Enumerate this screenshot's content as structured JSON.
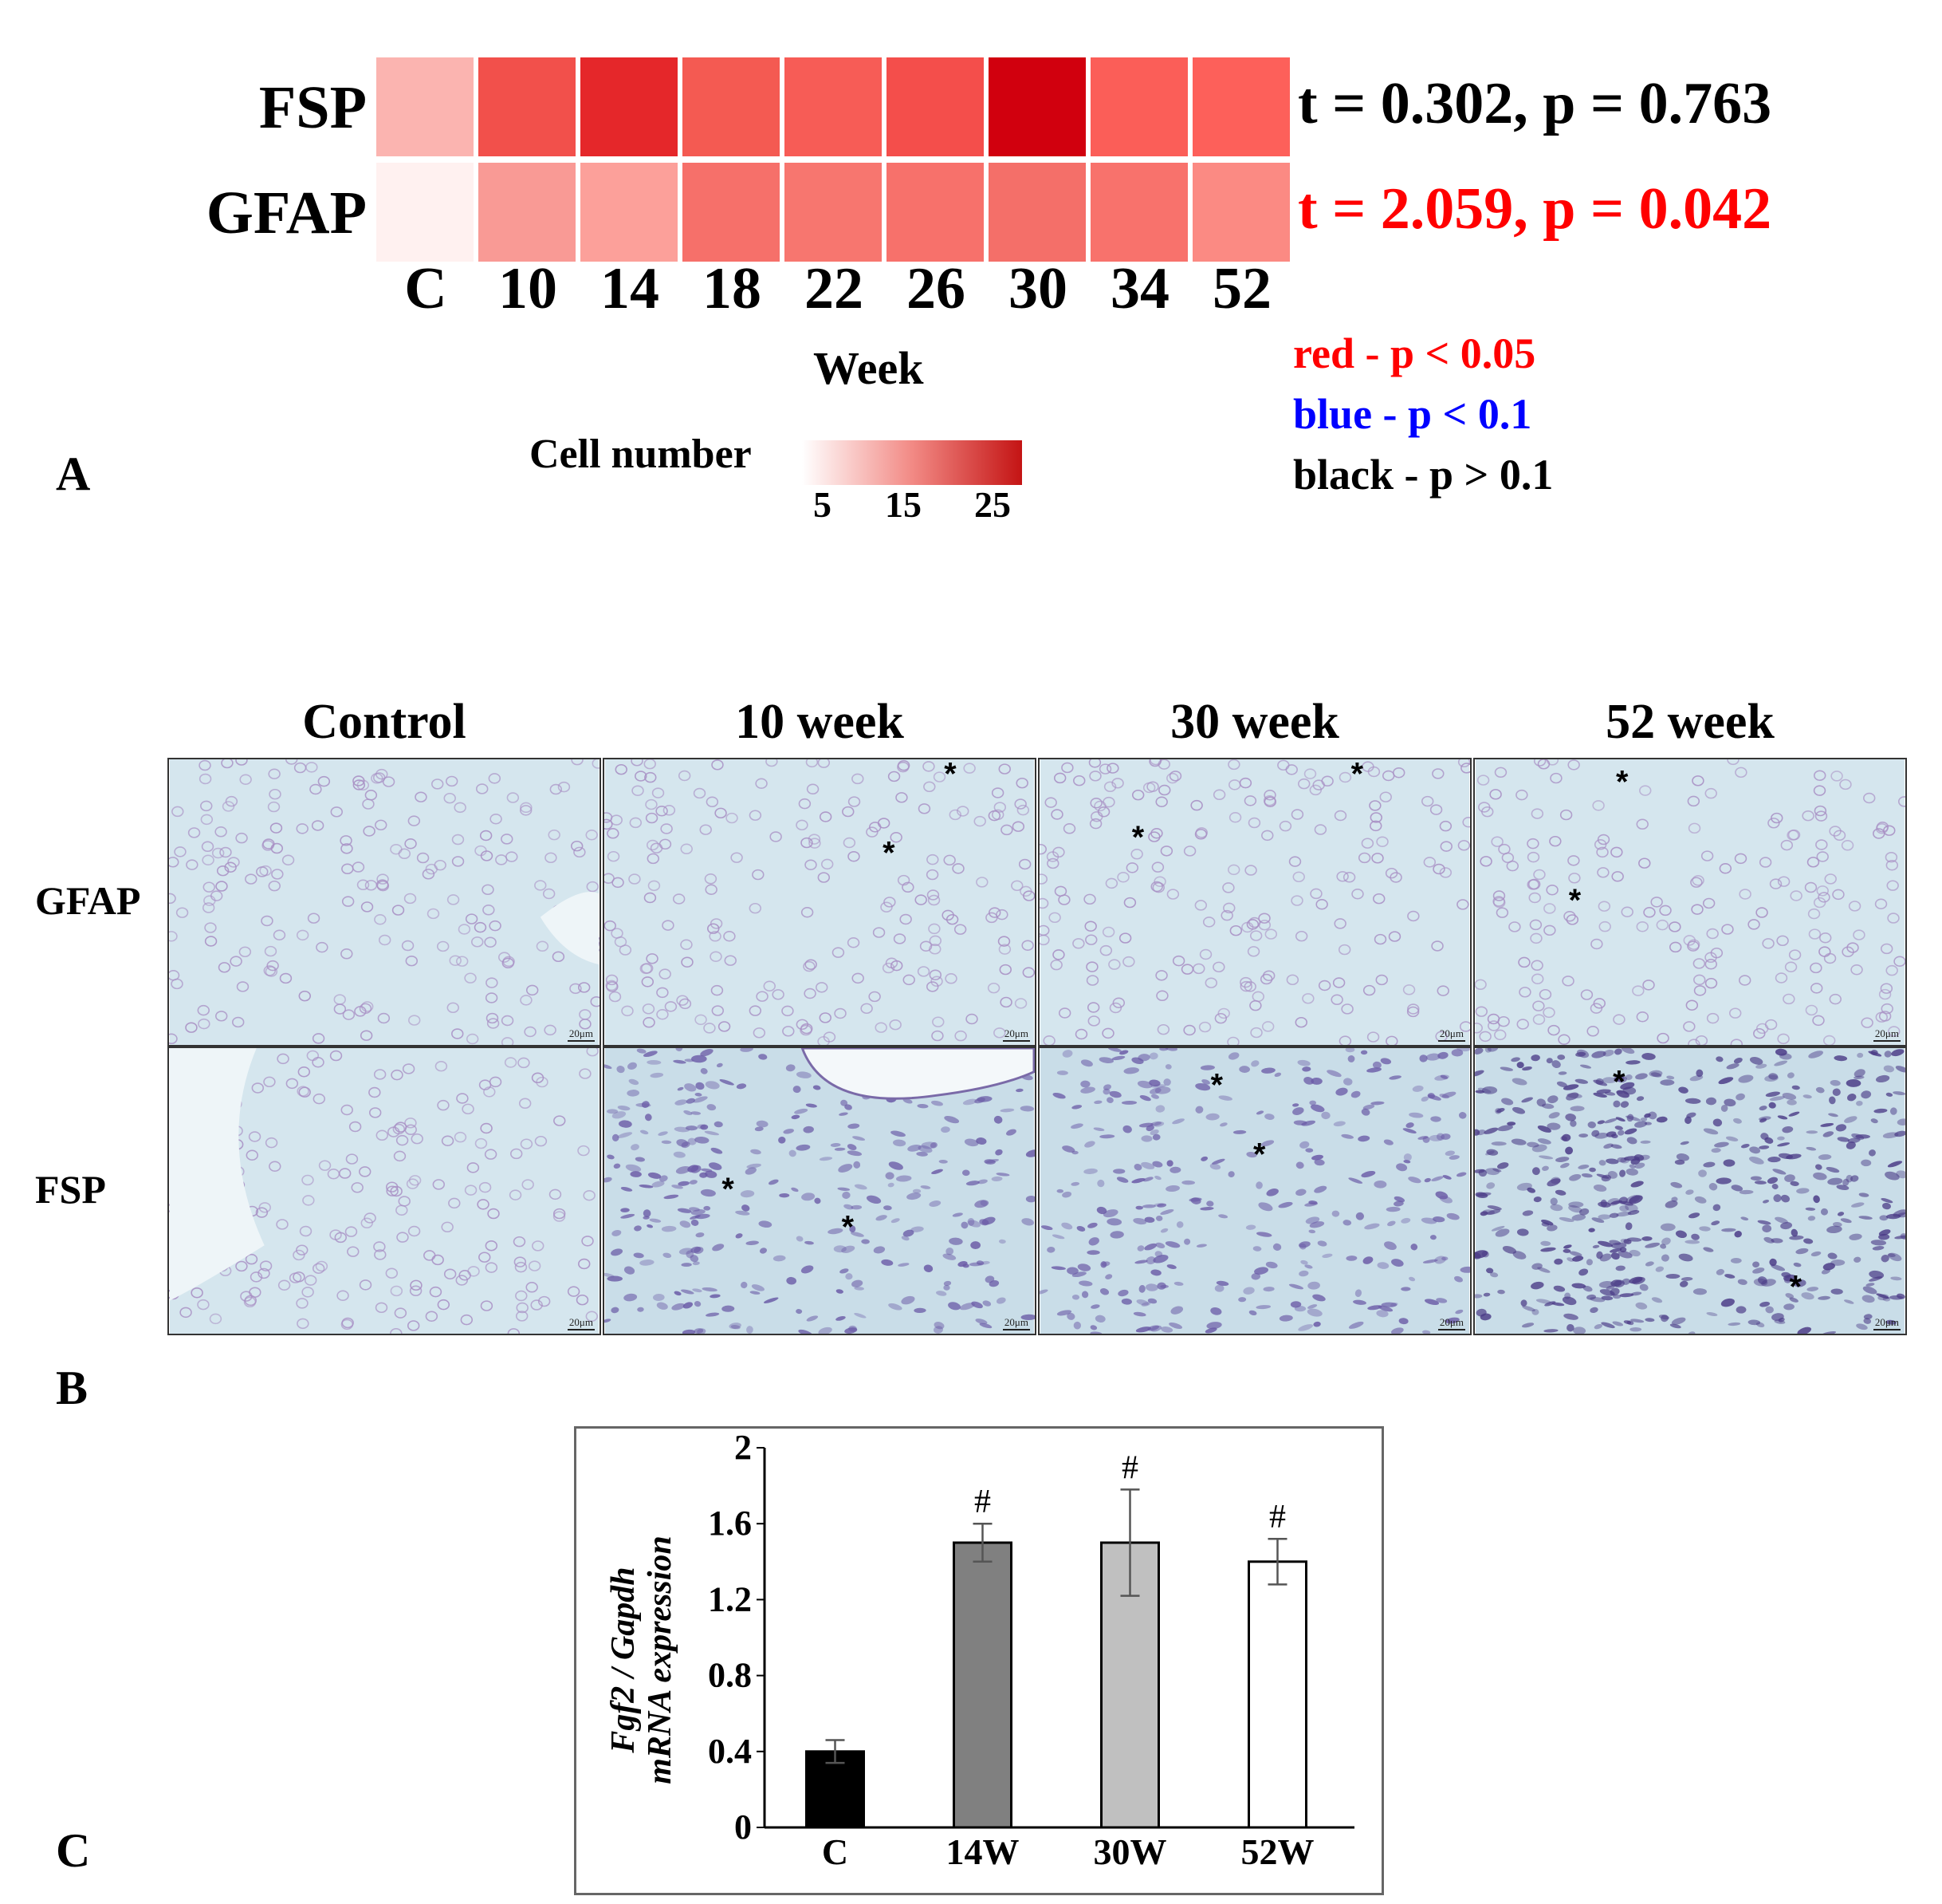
{
  "panel_a": {
    "letter": "A",
    "rows": [
      {
        "label": "FSP",
        "colors": [
          "#fbb4b0",
          "#f2504b",
          "#e5272a",
          "#f45a52",
          "#f75c56",
          "#f44e4b",
          "#d1000e",
          "#fb5e58",
          "#fd605a"
        ],
        "stat": "t = 0.302, p = 0.763",
        "stat_color": "#000000"
      },
      {
        "label": "GFAP",
        "colors": [
          "#fff1f0",
          "#f99a95",
          "#fca09a",
          "#f6706a",
          "#f7766f",
          "#f7716b",
          "#f46f69",
          "#f8726c",
          "#fb8a83"
        ],
        "stat": "t = 2.059, p = 0.042",
        "stat_color": "#ff0000"
      }
    ],
    "columns": [
      "C",
      "10",
      "14",
      "18",
      "22",
      "26",
      "30",
      "34",
      "52"
    ],
    "xlabel": "Week",
    "colorbar": {
      "title": "Cell number",
      "ticks": [
        "5",
        "15",
        "25"
      ],
      "low": "#ffffff",
      "high": "#c41414"
    },
    "significance_legend": [
      {
        "text": "red - p < 0.05",
        "color": "#ff0000"
      },
      {
        "text": "blue - p < 0.1",
        "color": "#0000ff"
      },
      {
        "text": "black - p > 0.1",
        "color": "#000000"
      }
    ]
  },
  "panel_b": {
    "letter": "B",
    "columns": [
      "Control",
      "10 week",
      "30 week",
      "52 week"
    ],
    "rows": [
      "GFAP",
      "FSP"
    ],
    "scale_bar": "20μm",
    "marker": "*"
  },
  "panel_c": {
    "letter": "C",
    "chart_data": {
      "type": "bar",
      "categories": [
        "C",
        "14W",
        "30W",
        "52W"
      ],
      "values": [
        0.4,
        1.5,
        1.5,
        1.4
      ],
      "errors": [
        0.06,
        0.1,
        0.28,
        0.12
      ],
      "bar_colors": [
        "#000000",
        "#808080",
        "#c0c0c0",
        "#ffffff"
      ],
      "annotations": [
        "",
        "#",
        "#",
        "#"
      ],
      "ylabel_line1": "Fgf2 / Gapdh",
      "ylabel_line2": "mRNA expression",
      "ylim": [
        0,
        2
      ],
      "yticks": [
        "0",
        "0.4",
        "0.8",
        "1.2",
        "1.6",
        "2"
      ]
    }
  }
}
